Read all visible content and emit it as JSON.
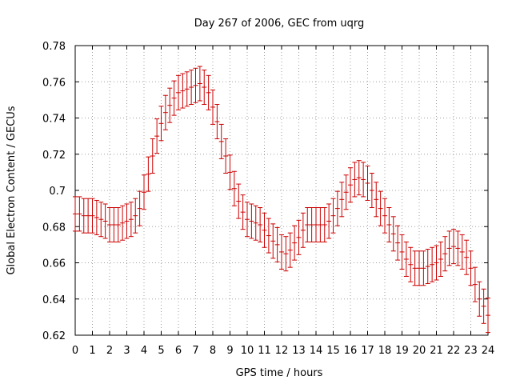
{
  "chart_data": {
    "type": "scatter",
    "title": "Day 267 of 2006, GEC from uqrg",
    "xlabel": "GPS time / hours",
    "ylabel": "Global Electron Content / GECUs",
    "xlim": [
      0,
      24
    ],
    "ylim": [
      0.62,
      0.78
    ],
    "xticks": [
      0,
      1,
      2,
      3,
      4,
      5,
      6,
      7,
      8,
      9,
      10,
      11,
      12,
      13,
      14,
      15,
      16,
      17,
      18,
      19,
      20,
      21,
      22,
      23,
      24
    ],
    "xtick_labels": [
      "0",
      "1",
      "2",
      "3",
      "4",
      "5",
      "6",
      "7",
      "8",
      "9",
      "10",
      "11",
      "12",
      "13",
      "14",
      "15",
      "16",
      "17",
      "18",
      "19",
      "20",
      "21",
      "22",
      "23",
      "24"
    ],
    "yticks": [
      0.62,
      0.64,
      0.66,
      0.68,
      0.7,
      0.72,
      0.74,
      0.76,
      0.78
    ],
    "ytick_labels": [
      "0.62",
      "0.64",
      "0.66",
      "0.68",
      "0.7",
      "0.72",
      "0.74",
      "0.76",
      "0.78"
    ],
    "grid": true,
    "series": [
      {
        "name": "GEC",
        "color": "#cc0000",
        "x": [
          0,
          0.25,
          0.5,
          0.75,
          1,
          1.25,
          1.5,
          1.75,
          2,
          2.25,
          2.5,
          2.75,
          3,
          3.25,
          3.5,
          3.75,
          4,
          4.25,
          4.5,
          4.75,
          5,
          5.25,
          5.5,
          5.75,
          6,
          6.25,
          6.5,
          6.75,
          7,
          7.25,
          7.5,
          7.75,
          8,
          8.25,
          8.5,
          8.75,
          9,
          9.25,
          9.5,
          9.75,
          10,
          10.25,
          10.5,
          10.75,
          11,
          11.25,
          11.5,
          11.75,
          12,
          12.25,
          12.5,
          12.75,
          13,
          13.25,
          13.5,
          13.75,
          14,
          14.25,
          14.5,
          14.75,
          15,
          15.25,
          15.5,
          15.75,
          16,
          16.25,
          16.5,
          16.75,
          17,
          17.25,
          17.5,
          17.75,
          18,
          18.25,
          18.5,
          18.75,
          19,
          19.25,
          19.5,
          19.75,
          20,
          20.25,
          20.5,
          20.75,
          21,
          21.25,
          21.5,
          21.75,
          22,
          22.25,
          22.5,
          22.75,
          23,
          23.25,
          23.5,
          23.75,
          24
        ],
        "y": [
          0.687,
          0.687,
          0.686,
          0.686,
          0.686,
          0.685,
          0.684,
          0.683,
          0.681,
          0.681,
          0.681,
          0.682,
          0.683,
          0.684,
          0.686,
          0.69,
          0.699,
          0.709,
          0.719,
          0.73,
          0.737,
          0.743,
          0.747,
          0.751,
          0.754,
          0.755,
          0.756,
          0.757,
          0.758,
          0.759,
          0.757,
          0.754,
          0.746,
          0.738,
          0.727,
          0.719,
          0.71,
          0.701,
          0.694,
          0.688,
          0.684,
          0.683,
          0.682,
          0.681,
          0.678,
          0.675,
          0.672,
          0.67,
          0.666,
          0.665,
          0.667,
          0.671,
          0.674,
          0.678,
          0.681,
          0.681,
          0.681,
          0.681,
          0.681,
          0.683,
          0.686,
          0.69,
          0.695,
          0.699,
          0.703,
          0.706,
          0.707,
          0.706,
          0.704,
          0.7,
          0.695,
          0.69,
          0.686,
          0.681,
          0.676,
          0.671,
          0.666,
          0.662,
          0.659,
          0.657,
          0.657,
          0.657,
          0.658,
          0.659,
          0.66,
          0.662,
          0.665,
          0.668,
          0.669,
          0.668,
          0.666,
          0.663,
          0.657,
          0.648,
          0.64,
          0.636,
          0.631
        ],
        "error": 0.0095
      }
    ]
  }
}
